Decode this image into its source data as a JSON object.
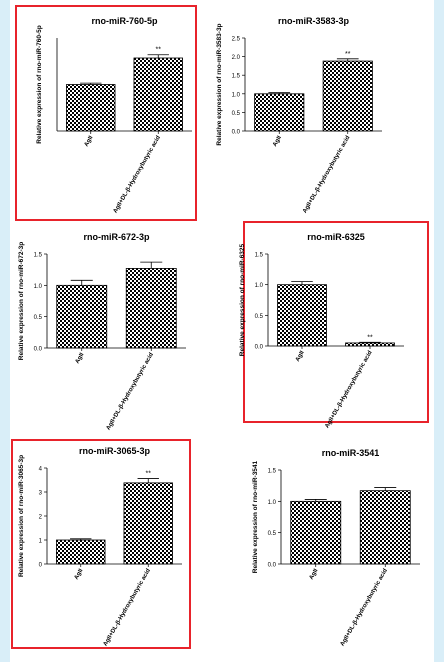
{
  "colors": {
    "background": "#d9eef8",
    "panel": "#ffffff",
    "highlight_box": "#e8232b",
    "bar_edge": "#000000"
  },
  "chart_data": [
    {
      "type": "bar",
      "title": "rno-miR-760-5p",
      "ylabel": "Relative expression of  rno-miR-760-5p",
      "categories": [
        "AgII",
        "AgII+DL-β-Hydroxybutyric acid"
      ],
      "values": [
        1.0,
        1.57
      ],
      "errors": [
        0.03,
        0.07
      ],
      "significance": [
        "",
        "**"
      ],
      "ylim": [
        0,
        2.0
      ],
      "yticks": [],
      "highlighted": true
    },
    {
      "type": "bar",
      "title": "rno-miR-3583-3p",
      "ylabel": "Relative expression of  rno-miR-3583-3p",
      "categories": [
        "AgII",
        "AgII+DL-β-Hydroxybutyric acid"
      ],
      "values": [
        1.0,
        1.88
      ],
      "errors": [
        0.03,
        0.06
      ],
      "significance": [
        "",
        "**"
      ],
      "ylim": [
        0,
        2.5
      ],
      "yticks": [
        "0.0",
        "0.5",
        "1.0",
        "1.5",
        "2.0",
        "2.5"
      ],
      "highlighted": false
    },
    {
      "type": "bar",
      "title": "rno-miR-672-3p",
      "ylabel": "Relative expression of  rno-miR-672-3p",
      "categories": [
        "AgII",
        "AgII+DL-β-Hydroxybutyric acid"
      ],
      "values": [
        1.0,
        1.27
      ],
      "errors": [
        0.08,
        0.1
      ],
      "significance": [
        "",
        ""
      ],
      "ylim": [
        0,
        1.5
      ],
      "yticks": [
        "0.0",
        "0.5",
        "1.0",
        "1.5"
      ],
      "highlighted": false
    },
    {
      "type": "bar",
      "title": "rno-miR-6325",
      "ylabel": "Relative expression of  rno-miR-6325",
      "categories": [
        "AgII",
        "AgII+DL-β-Hydroxybutyric acid"
      ],
      "values": [
        1.0,
        0.05
      ],
      "errors": [
        0.05,
        0.01
      ],
      "significance": [
        "",
        "**"
      ],
      "ylim": [
        0,
        1.5
      ],
      "yticks": [
        "0.0",
        "0.5",
        "1.0",
        "1.5"
      ],
      "highlighted": true
    },
    {
      "type": "bar",
      "title": "rno-miR-3065-3p",
      "ylabel": "Relative expression of  rno-miR-3065-3p",
      "categories": [
        "AgII",
        "AgII+DL-β-Hydroxybutyric acid"
      ],
      "values": [
        1.0,
        3.38
      ],
      "errors": [
        0.05,
        0.18
      ],
      "significance": [
        "",
        "**"
      ],
      "ylim": [
        0,
        4
      ],
      "yticks": [
        "0",
        "1",
        "2",
        "3",
        "4"
      ],
      "highlighted": true
    },
    {
      "type": "bar",
      "title": "rno-miR-3541",
      "ylabel": "Relative expression of  rno-miR-3541",
      "categories": [
        "AgII",
        "AgII+DL-β-Hydroxybutyric acid"
      ],
      "values": [
        1.0,
        1.17
      ],
      "errors": [
        0.03,
        0.05
      ],
      "significance": [
        "",
        ""
      ],
      "ylim": [
        0,
        1.5
      ],
      "yticks": [
        "0.0",
        "0.5",
        "1.0",
        "1.5"
      ],
      "highlighted": false
    }
  ]
}
